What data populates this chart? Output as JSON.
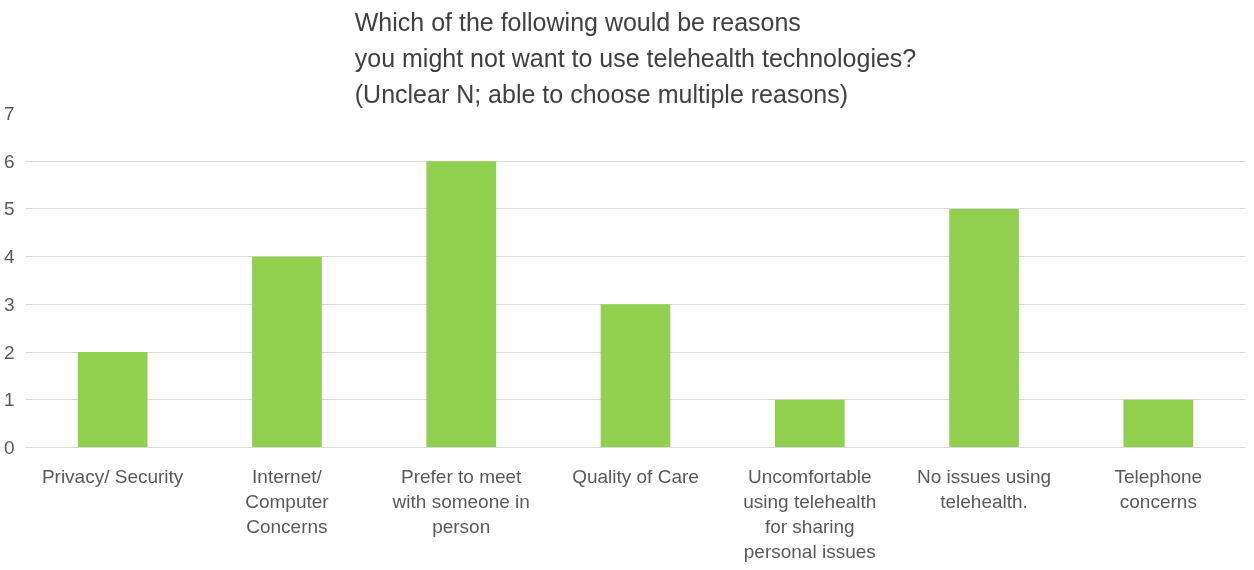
{
  "chart_data": {
    "type": "bar",
    "title": "Which of the following would be reasons\nyou might not want to use telehealth technologies?\n(Unclear N; able to choose multiple reasons)",
    "categories": [
      "Privacy/ Security",
      "Internet/\nComputer\nConcerns",
      "Prefer to meet\nwith someone in\nperson",
      "Quality of Care",
      "Uncomfortable\nusing telehealth\nfor sharing\npersonal issues",
      "No issues using\ntelehealth.",
      "Telephone\nconcerns"
    ],
    "values": [
      2,
      4,
      6,
      3,
      1,
      5,
      1
    ],
    "color": "#92d050",
    "ylim": [
      0,
      7
    ],
    "yticks": [
      0,
      1,
      2,
      3,
      4,
      5,
      6,
      7
    ],
    "grid": "y"
  }
}
